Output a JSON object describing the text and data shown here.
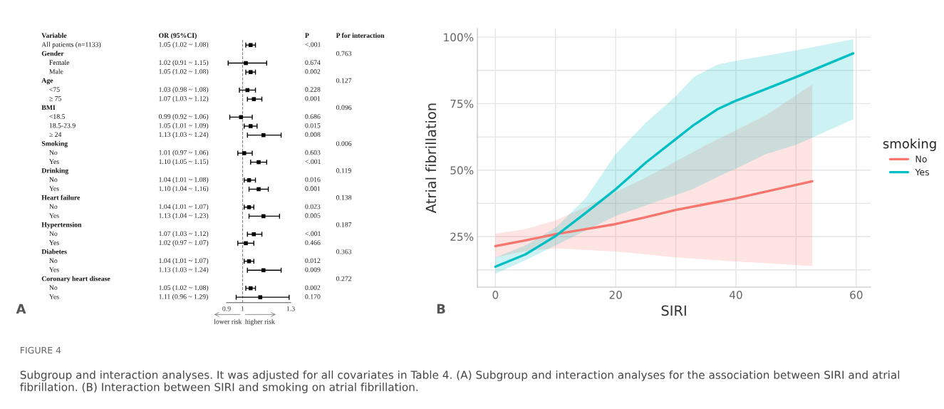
{
  "chart_data": [
    {
      "type": "scatter",
      "orientation": "horizontal",
      "marker": "square",
      "xlim": [
        0.9,
        1.3
      ],
      "xticks": [
        0.9,
        1,
        1.3
      ],
      "categories": [
        "All patients (n=1133)",
        "Gender",
        "Female",
        "Male",
        "Age",
        "<75",
        "≥ 75",
        "BMI",
        "<18.5",
        "18.5-23.9",
        "≥ 24",
        "Smoking",
        "No",
        "Yes",
        "Drinking",
        "No",
        "Yes",
        "Heart failure",
        "No",
        "Yes",
        "Hypertension",
        "No",
        "Yes",
        "Diabetes",
        "No",
        "Yes",
        "Coronary heart disease",
        "No",
        "Yes"
      ],
      "series": [
        {
          "type": "scatter",
          "color": "#000000",
          "values": [
            1.05,
            null,
            1.02,
            1.05,
            null,
            1.03,
            1.07,
            null,
            0.99,
            1.05,
            1.13,
            null,
            1.01,
            1.1,
            null,
            1.04,
            1.1,
            null,
            1.04,
            1.13,
            null,
            1.07,
            1.02,
            null,
            1.04,
            1.13,
            null,
            1.05,
            1.11
          ],
          "errors": [
            [
              1.02,
              1.08
            ],
            null,
            [
              0.91,
              1.15
            ],
            [
              1.02,
              1.08
            ],
            null,
            [
              0.98,
              1.08
            ],
            [
              1.03,
              1.12
            ],
            null,
            [
              0.92,
              1.06
            ],
            [
              1.01,
              1.09
            ],
            [
              1.03,
              1.24
            ],
            null,
            [
              0.97,
              1.06
            ],
            [
              1.05,
              1.15
            ],
            null,
            [
              1.01,
              1.08
            ],
            [
              1.04,
              1.16
            ],
            null,
            [
              1.01,
              1.07
            ],
            [
              1.04,
              1.23
            ],
            null,
            [
              1.03,
              1.12
            ],
            [
              0.97,
              1.07
            ],
            null,
            [
              1.01,
              1.07
            ],
            [
              1.03,
              1.24
            ],
            null,
            [
              1.02,
              1.08
            ],
            [
              0.96,
              1.29
            ]
          ],
          "value_labels": [
            "1.05 (1.02 ~ 1.08)",
            null,
            "1.02 (0.91 ~ 1.15)",
            "1.05 (1.02 ~ 1.08)",
            null,
            "1.03 (0.98 ~ 1.08)",
            "1.07 (1.03 ~ 1.12)",
            null,
            "0.99 (0.92 ~ 1.06)",
            "1.05 (1.01 ~ 1.09)",
            "1.13 (1.03 ~ 1.24)",
            null,
            "1.01 (0.97 ~ 1.06)",
            "1.10 (1.05 ~ 1.15)",
            null,
            "1.04 (1.01 ~ 1.08)",
            "1.10 (1.04 ~ 1.16)",
            null,
            "1.04 (1.01 ~ 1.07)",
            "1.13 (1.04 ~ 1.23)",
            null,
            "1.07 (1.03 ~ 1.12)",
            "1.02 (0.97 ~ 1.07)",
            null,
            "1.04 (1.01 ~ 1.07)",
            "1.13 (1.03 ~ 1.24)",
            null,
            "1.05 (1.02 ~ 1.08)",
            "1.11 (0.96 ~ 1.29)"
          ]
        },
        {
          "type": "other",
          "values": [
            null,
            null,
            null,
            null,
            null,
            null,
            null,
            null,
            null,
            null,
            null,
            null,
            null,
            null,
            null,
            null,
            null,
            null,
            null,
            null,
            null,
            null,
            null,
            null,
            null,
            null,
            null,
            null,
            null
          ],
          "value_labels": [
            "<.001",
            null,
            "0.674",
            "0.002",
            null,
            "0.228",
            "0.001",
            null,
            "0.686",
            "0.015",
            "0.008",
            null,
            "0.603",
            "<.001",
            null,
            "0.016",
            "0.001",
            null,
            "0.023",
            "0.005",
            null,
            "<.001",
            "0.466",
            null,
            "0.012",
            "0.009",
            null,
            "0.002",
            "0.170"
          ]
        },
        {
          "type": "other",
          "values": [
            null,
            null,
            null,
            null,
            null,
            null,
            null,
            null,
            null,
            null,
            null,
            null,
            null,
            null,
            null,
            null,
            null,
            null,
            null,
            null,
            null,
            null,
            null,
            null,
            null,
            null,
            null,
            null,
            null
          ],
          "value_labels": [
            null,
            "0.763",
            null,
            null,
            "0.127",
            null,
            null,
            "0.096",
            null,
            null,
            null,
            "0.006",
            null,
            null,
            "0.119",
            null,
            null,
            "0.138",
            null,
            null,
            "0.187",
            null,
            null,
            "0.363",
            null,
            null,
            "0.272",
            null,
            null
          ]
        }
      ],
      "ref_lines": [
        {
          "axis": "x",
          "value": 1,
          "color": "#808080",
          "line_style": "dashed"
        }
      ],
      "tick_labels": "x",
      "annotations": [
        "Variable",
        "OR (95%CI)",
        "P",
        "P for interaction",
        "lower risk",
        "higher risk",
        "A"
      ]
    },
    {
      "type": "line",
      "xlabel": "SIRI",
      "ylabel": "Atrial fibrillation",
      "legend_title": "smoking",
      "legend": "right",
      "grid": true,
      "xlim": [
        -3,
        62.4
      ],
      "xticks": [
        0,
        {
          "value": 10,
          "label": null
        },
        20,
        {
          "value": 30,
          "label": null
        },
        40,
        {
          "value": 50,
          "label": null
        },
        60
      ],
      "ylim": [
        6,
        103.2
      ],
      "yticks": [
        {
          "value": 12.5,
          "label": null
        },
        {
          "value": 25,
          "label": "25%"
        },
        {
          "value": 37.5,
          "label": null
        },
        {
          "value": 50,
          "label": "50%"
        },
        {
          "value": 62.5,
          "label": null
        },
        {
          "value": 75,
          "label": "75%"
        },
        {
          "value": 87.5,
          "label": null
        },
        {
          "value": 100,
          "label": "100%"
        }
      ],
      "series": [
        {
          "name": "No",
          "color": "#f8766d",
          "x": [
            0,
            5,
            10,
            15,
            20,
            25,
            30,
            35,
            40,
            45,
            52.7
          ],
          "values": [
            21.4,
            23.6,
            25.9,
            27.8,
            29.7,
            32.3,
            35,
            37.2,
            39.4,
            41.9,
            45.8
          ],
          "lower": [
            17.2,
            19.5,
            20.6,
            20,
            19.4,
            18.3,
            17.2,
            16.4,
            15.6,
            15,
            13.9
          ],
          "upper": [
            26.1,
            27.8,
            31.1,
            36.1,
            41.7,
            47.2,
            53.3,
            59.4,
            65,
            70.6,
            82.2
          ]
        },
        {
          "name": "Yes",
          "color": "#00bfc4",
          "x": [
            0,
            5,
            10,
            15,
            20,
            25,
            30,
            33,
            37,
            40,
            45,
            50,
            59.5
          ],
          "values": [
            13.7,
            18.3,
            25.2,
            33.9,
            42.8,
            52.8,
            61.7,
            67,
            73,
            76.1,
            80.5,
            85,
            93.9
          ],
          "lower": [
            11.1,
            16.1,
            21.7,
            27.2,
            32.8,
            36.7,
            40.6,
            43,
            47.5,
            50.6,
            56,
            59.5,
            69.1
          ],
          "upper": [
            17.2,
            21.7,
            28.3,
            39.4,
            56,
            67.8,
            77.8,
            85,
            89.7,
            91.1,
            93,
            95,
            99.2
          ]
        }
      ],
      "annotations": [
        "B",
        "FIGURE 4",
        "Subgroup and interaction analyses. It was adjusted for all covariates in Table 4. (A) Subgroup and interaction analyses for the association between SIRI and atrial fibrillation. (B) Interaction between SIRI and smoking on atrial fibrillation."
      ]
    }
  ]
}
